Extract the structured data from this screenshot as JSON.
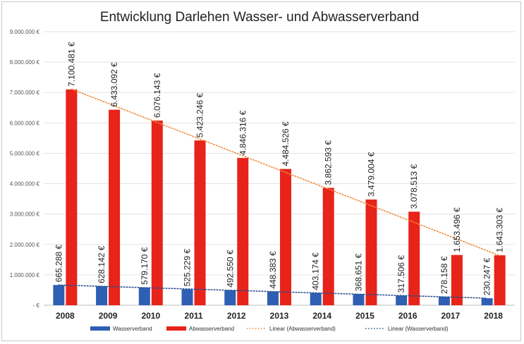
{
  "chart_data": {
    "type": "bar",
    "title": "Entwicklung Darlehen Wasser- und Abwasserverband",
    "categories": [
      "2008",
      "2009",
      "2010",
      "2011",
      "2012",
      "2013",
      "2014",
      "2015",
      "2016",
      "2017",
      "2018"
    ],
    "series": [
      {
        "name": "Wasserverband",
        "color": "#2f5fb3",
        "values": [
          665288,
          628142,
          579170,
          525229,
          492550,
          448383,
          403174,
          368651,
          317506,
          278158,
          230247
        ],
        "labels": [
          "665.288 €",
          "628.142 €",
          "579.170 €",
          "525.229 €",
          "492.550 €",
          "448.383 €",
          "403.174 €",
          "368.651 €",
          "317.506 €",
          "278.158 €",
          "230.247 €"
        ]
      },
      {
        "name": "Abwasserverband",
        "color": "#e8231a",
        "values": [
          7100481,
          6433092,
          6076143,
          5423246,
          4846316,
          4484526,
          3862593,
          3479004,
          3078513,
          1653496,
          1643303
        ],
        "labels": [
          "7.100.481 €",
          "6.433.092 €",
          "6.076.143 €",
          "5.423.246 €",
          "4.846.316 €",
          "4.484.526 €",
          "3.862.593 €",
          "3.479.004 €",
          "3.078.513 €",
          "1.653.496 €",
          "1.643.303 €"
        ]
      }
    ],
    "trendlines": [
      {
        "name": "Linear (Abwasserverband)",
        "series": "Abwasserverband",
        "color": "#f08a3c",
        "style": "dotted"
      },
      {
        "name": "Linear (Wasserverband)",
        "series": "Wasserverband",
        "color": "#2a4f8f",
        "style": "dotted"
      }
    ],
    "ylim": [
      0,
      9000000
    ],
    "yticks": [
      0,
      1000000,
      2000000,
      3000000,
      4000000,
      5000000,
      6000000,
      7000000,
      8000000,
      9000000
    ],
    "ytick_labels": [
      "- €",
      "1.000.000 €",
      "2.000.000 €",
      "3.000.000 €",
      "4.000.000 €",
      "5.000.000 €",
      "6.000.000 €",
      "7.000.000 €",
      "8.000.000 €",
      "9.000.000 €"
    ],
    "grid": true,
    "legend_position": "bottom"
  }
}
